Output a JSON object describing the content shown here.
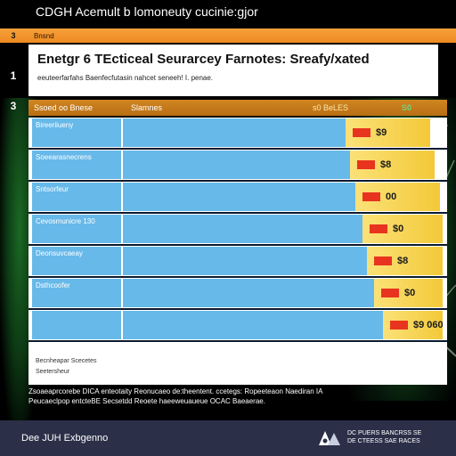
{
  "window_title": "CDGH Acemult b lomoneuty cucinie:gjor",
  "tab_bar": {
    "num": "3",
    "label": "Bnsnd"
  },
  "left_numbers": [
    "1",
    "3"
  ],
  "header": {
    "title": "Enetgr 6 TEcticeal Seurarcey Farnotes: Sreafy/xated",
    "subtitle": "eeuteerfarfahs Baenfecfutasin nahcet seneeh! I. penae."
  },
  "table": {
    "columns": {
      "name": "Ssoed oo Bnese",
      "bar": "Slamnes",
      "value_label": "s0 BeLES",
      "extra": "S0"
    },
    "rows": [
      {
        "label": "Bireeriiueny",
        "value": "$9",
        "bar_fraction": 0.72
      },
      {
        "label": "Soeearasnecrens",
        "value": "$8",
        "bar_fraction": 0.74
      },
      {
        "label": "Sntsorfeur",
        "value": "00",
        "bar_fraction": 0.76
      },
      {
        "label": "Cevosmunicre 130",
        "value": "$0",
        "bar_fraction": 0.79
      },
      {
        "label": "Deonsuvcaeay",
        "value": "$8",
        "bar_fraction": 0.81
      },
      {
        "label": "Dsthcoofer",
        "value": "$0",
        "bar_fraction": 0.84
      },
      {
        "label": "",
        "value": "$9 060",
        "bar_fraction": 0.88
      }
    ],
    "footnotes": [
      "Becnheapar Scecetes",
      "Seetersheur"
    ]
  },
  "caption": {
    "line1": "Zsoaeaprcorebe DICA enteotaity Reonucaeo de:theentent. ccetegs: Ropeeteaon Naediran IA",
    "line2": "Peucaeclpop entcteBE Secsetdd Reoete haeeweuaueue OCAC Baeaerae."
  },
  "footer": {
    "left": "Dee JUH Exbgenno",
    "right_line1": "DC PUERS BANCRSS SE",
    "right_line2": "DE CTEESS SAE RACES"
  },
  "colors": {
    "accent_orange": "#f6a13a",
    "table_header": "#d18522",
    "cell_blue": "#67b9e9",
    "value_yellow": "#f3c938",
    "swatch_red": "#e8341f",
    "footer_navy": "#2b2f48"
  }
}
